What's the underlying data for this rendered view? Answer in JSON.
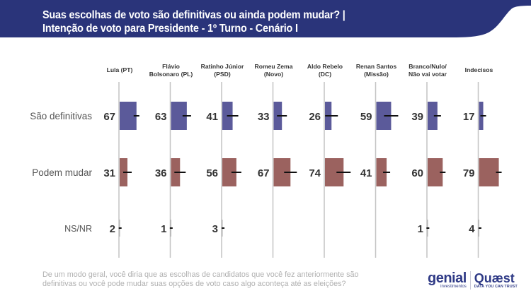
{
  "header": {
    "title_line1": "Suas escolhas de voto são definitivas ou ainda podem mudar? |",
    "title_line2": "Intenção de voto para Presidente - 1º Turno - Cenário I",
    "band_color": "#2a347a"
  },
  "chart_data": {
    "type": "bar",
    "orientation": "horizontal",
    "layout": "small-multiples",
    "title": "Suas escolhas de voto são definitivas ou ainda podem mudar? | Intenção de voto para Presidente - 1º Turno - Cenário I",
    "columns": [
      "Lula (PT)",
      "Flávio Bolsonaro (PL)",
      "Ratinho Júnior (PSD)",
      "Romeu Zema (Novo)",
      "Aldo Rebelo (DC)",
      "Renan Santos (Missão)",
      "Branco/Nulo/ Não vai votar",
      "Indecisos"
    ],
    "column_label_lines": [
      [
        "Lula (PT)"
      ],
      [
        "Flávio",
        "Bolsonaro (PL)"
      ],
      [
        "Ratinho Júnior",
        "(PSD)"
      ],
      [
        "Romeu Zema",
        "(Novo)"
      ],
      [
        "Aldo Rebelo",
        "(DC)"
      ],
      [
        "Renan Santos",
        "(Missão)"
      ],
      [
        "Branco/Nulo/",
        "Não vai votar"
      ],
      [
        "Indecisos"
      ]
    ],
    "categories": [
      "São definitivas",
      "Podem mudar",
      "NS/NR"
    ],
    "series": [
      {
        "name": "São definitivas",
        "color": "#5b5a9a",
        "values": [
          67,
          63,
          41,
          33,
          26,
          59,
          39,
          17
        ]
      },
      {
        "name": "Podem mudar",
        "color": "#9b625f",
        "values": [
          31,
          36,
          56,
          67,
          74,
          41,
          60,
          79
        ]
      },
      {
        "name": "NS/NR",
        "color": "#9a9a9a",
        "values": [
          2,
          1,
          3,
          null,
          null,
          null,
          1,
          4
        ]
      }
    ],
    "error_bars": true,
    "unit": "%",
    "xlim": [
      0,
      100
    ],
    "grid": false,
    "legend": "none"
  },
  "footer": {
    "question": "De um modo geral, você diria que as escolhas de candidatos que você fez anteriormente são definitivas ou você pode mudar suas opções de voto caso algo aconteça até as eleições?",
    "logo_genial": "genial",
    "logo_genial_sub": "investimentos",
    "logo_quaest": "Quæst",
    "logo_quaest_sub": "DATA YOU CAN TRUST"
  }
}
